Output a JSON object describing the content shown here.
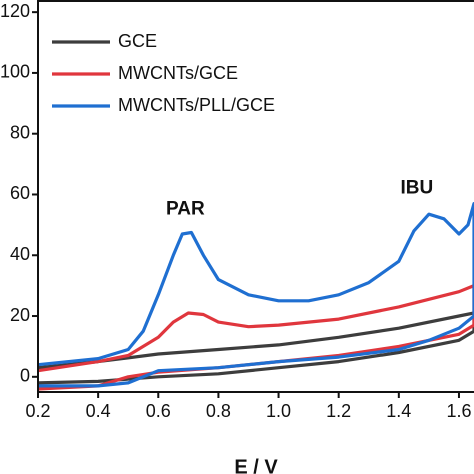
{
  "chart_data": {
    "type": "line",
    "xlabel": "E / V",
    "xlim": [
      0.2,
      1.65
    ],
    "ylim": [
      -5,
      124
    ],
    "xticks": [
      {
        "value": 0.2,
        "label": "0.2"
      },
      {
        "value": 0.4,
        "label": "0.4"
      },
      {
        "value": 0.6,
        "label": "0.6"
      },
      {
        "value": 0.8,
        "label": "0.8"
      },
      {
        "value": 1.0,
        "label": "1.0"
      },
      {
        "value": 1.2,
        "label": "1.2"
      },
      {
        "value": 1.4,
        "label": "1.4"
      },
      {
        "value": 1.6,
        "label": "1.6"
      }
    ],
    "yticks": [
      0,
      20,
      40,
      60,
      80,
      100,
      120
    ],
    "legend": "upper left",
    "annotations": [
      {
        "text": "PAR",
        "x": 0.69,
        "y": 55
      },
      {
        "text": "IBU",
        "x": 1.46,
        "y": 62
      }
    ],
    "series": [
      {
        "name": "GCE",
        "color": "#3d3d3d",
        "x": [
          0.2,
          0.4,
          0.6,
          0.8,
          1.0,
          1.2,
          1.4,
          1.6,
          1.65,
          1.65,
          1.6,
          1.4,
          1.2,
          1.0,
          0.8,
          0.6,
          0.4,
          0.2
        ],
        "values": [
          3,
          5,
          7.5,
          9,
          10.5,
          13,
          16,
          20,
          21,
          15,
          12,
          8,
          5,
          3,
          1,
          0,
          -1.5,
          -2
        ]
      },
      {
        "name": "MWCNTs/GCE",
        "color": "#e0363d",
        "x": [
          0.2,
          0.4,
          0.5,
          0.6,
          0.65,
          0.7,
          0.75,
          0.8,
          0.9,
          1.0,
          1.2,
          1.4,
          1.6,
          1.65,
          1.65,
          1.6,
          1.4,
          1.2,
          1.0,
          0.8,
          0.6,
          0.5,
          0.4,
          0.2
        ],
        "values": [
          2,
          5,
          7,
          13,
          18,
          21,
          20.5,
          18,
          16.5,
          17,
          19,
          23,
          28,
          30,
          17,
          14,
          10,
          7,
          5,
          3,
          1.5,
          0,
          -3,
          -4
        ]
      },
      {
        "name": "MWCNTs/PLL/GCE",
        "color": "#1f6fd1",
        "x": [
          0.2,
          0.4,
          0.5,
          0.55,
          0.6,
          0.65,
          0.68,
          0.71,
          0.75,
          0.8,
          0.9,
          1.0,
          1.1,
          1.2,
          1.3,
          1.4,
          1.45,
          1.5,
          1.55,
          1.6,
          1.63,
          1.65,
          1.65,
          1.6,
          1.5,
          1.4,
          1.2,
          1.0,
          0.8,
          0.6,
          0.55,
          0.5,
          0.4,
          0.2
        ],
        "values": [
          4,
          6,
          9,
          15,
          27,
          40,
          47,
          47.5,
          40,
          32,
          27,
          25,
          25,
          27,
          31,
          38,
          48,
          53.5,
          52,
          47,
          50,
          57,
          20,
          16,
          12,
          9,
          6.5,
          5,
          3,
          2,
          0,
          -2,
          -3,
          -3
        ]
      }
    ]
  }
}
